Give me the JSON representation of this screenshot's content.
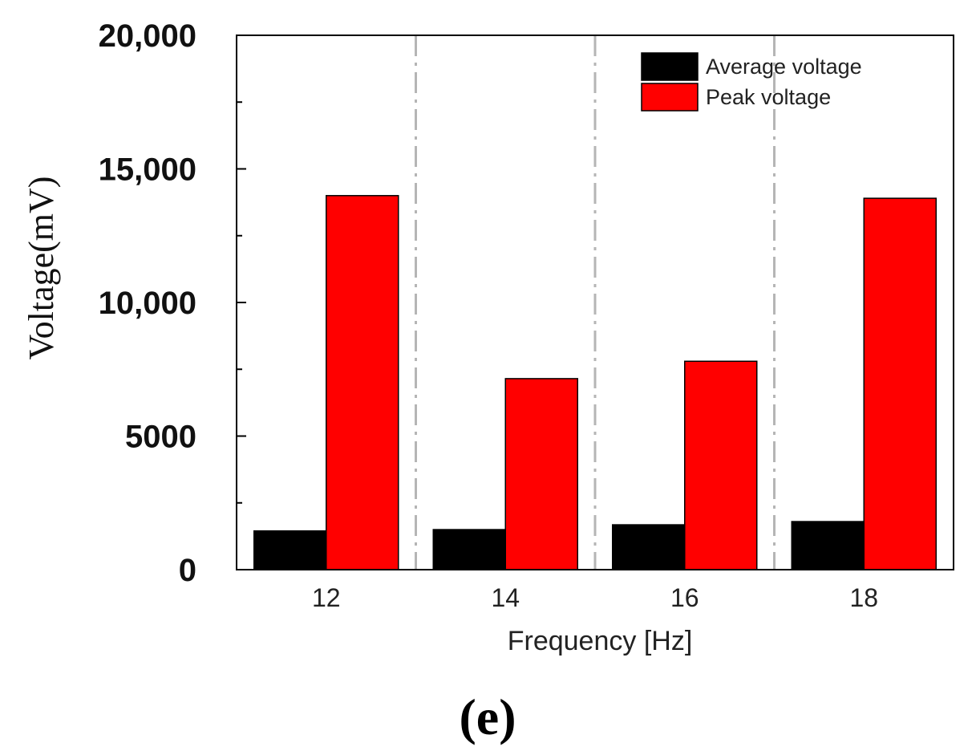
{
  "chart_data": {
    "type": "bar",
    "categories": [
      "12",
      "14",
      "16",
      "18"
    ],
    "series": [
      {
        "name": "Average voltage",
        "color": "#000000",
        "values": [
          1450,
          1500,
          1680,
          1800
        ]
      },
      {
        "name": "Peak voltage",
        "color": "#ff0000",
        "values": [
          14000,
          7150,
          7800,
          13900
        ]
      }
    ],
    "xlabel": "Frequency [Hz]",
    "ylabel": "Voltage(mV)",
    "ylim": [
      0,
      20000
    ],
    "yticks": [
      0,
      5000,
      10000,
      15000,
      20000
    ],
    "ytick_labels": [
      "0",
      "5000",
      "10,000",
      "15,000",
      "20,000"
    ],
    "legend_position": "top-right",
    "category_separators": "dash-dot",
    "panel_label": "(e)"
  }
}
